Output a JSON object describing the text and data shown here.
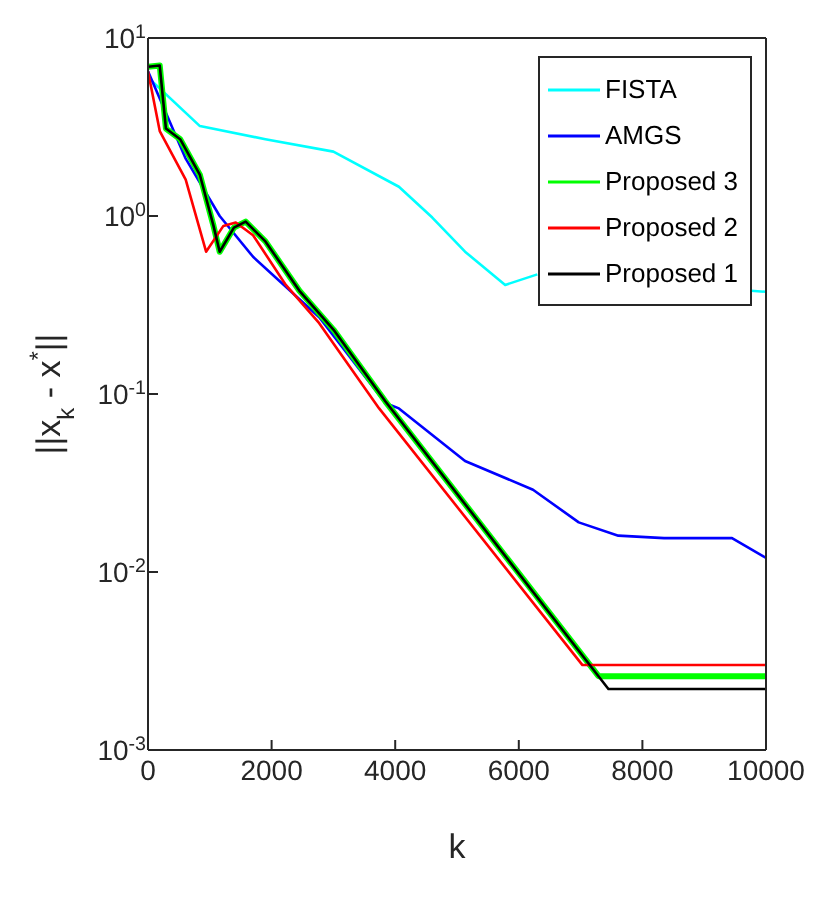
{
  "chart_data": {
    "type": "line",
    "xlabel": "k",
    "ylabel": "||x$_{k}$ - x$^{*}$||",
    "log": "y",
    "xlim": [
      0,
      10000
    ],
    "xticks": [
      0,
      2000,
      4000,
      6000,
      8000,
      10000
    ],
    "ylim": [
      0.001,
      10
    ],
    "yticks": [
      {
        "value": 10,
        "label": "10$^{1}$"
      },
      {
        "value": 1,
        "label": "10$^{0}$"
      },
      {
        "value": 0.1,
        "label": "10$^{-1}$"
      },
      {
        "value": 0.01,
        "label": "10$^{-2}$"
      },
      {
        "value": 0.001,
        "label": "10$^{-3}$"
      }
    ],
    "legend": "top right",
    "line_style": "solid",
    "marker": "none",
    "series": [
      {
        "name": "FISTA",
        "color": "#00ffff",
        "x": [
          0,
          840,
          1900,
          3000,
          4060,
          4600,
          5130,
          5780,
          6300,
          7000,
          9760,
          10000
        ],
        "values": [
          6,
          3.2,
          2.7,
          2.3,
          1.46,
          0.98,
          0.63,
          0.41,
          0.47,
          null,
          0.38,
          0.375
        ]
      },
      {
        "name": "AMGS",
        "color": "#0000ff",
        "x": [
          0,
          610,
          1160,
          1700,
          2770,
          3840,
          4060,
          5130,
          6230,
          6970,
          7610,
          8350,
          9450,
          10000
        ],
        "values": [
          6.5,
          2.1,
          1.0,
          0.59,
          0.27,
          0.089,
          0.083,
          0.042,
          0.029,
          0.019,
          0.016,
          0.0155,
          0.0155,
          0.012
        ]
      },
      {
        "name": "Proposed 3",
        "color": "#00ff00",
        "x": [
          0,
          190,
          290,
          520,
          840,
          1060,
          1160,
          1390,
          1580,
          1900,
          2450,
          3000,
          3840,
          7290,
          10000
        ],
        "values": [
          6.9,
          7,
          3.1,
          2.7,
          1.7,
          0.88,
          0.63,
          0.86,
          0.93,
          0.72,
          0.38,
          0.23,
          0.091,
          0.0026,
          0.0026
        ]
      },
      {
        "name": "Proposed 2",
        "color": "#ff0000",
        "x": [
          0,
          190,
          610,
          940,
          1220,
          1420,
          1700,
          2230,
          2770,
          3740,
          7030,
          10000
        ],
        "values": [
          6.5,
          3.0,
          1.6,
          0.63,
          0.88,
          0.92,
          0.78,
          0.41,
          0.25,
          0.083,
          0.003,
          0.003
        ]
      },
      {
        "name": "Proposed 1",
        "color": "#000000",
        "x": [
          0,
          190,
          290,
          520,
          840,
          1060,
          1160,
          1390,
          1580,
          1900,
          2450,
          3000,
          3840,
          7450,
          10000
        ],
        "values": [
          6.9,
          7,
          3.1,
          2.7,
          1.7,
          0.88,
          0.63,
          0.86,
          0.93,
          0.72,
          0.38,
          0.23,
          0.091,
          0.0022,
          0.0022
        ]
      }
    ]
  }
}
